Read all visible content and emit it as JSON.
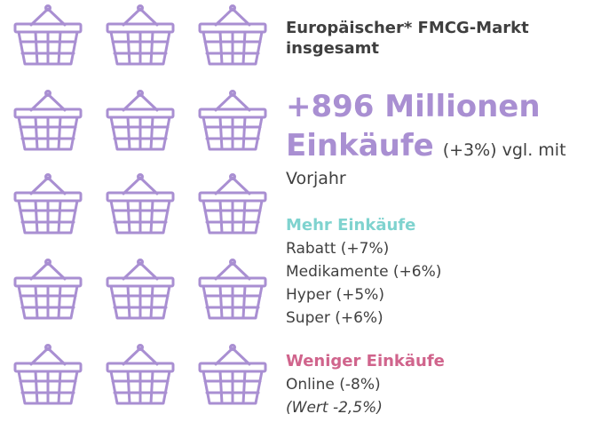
{
  "colors": {
    "basket": "#a98fd2",
    "accent": "#a98fd2",
    "more": "#7fd3cf",
    "less": "#d0648c",
    "text": "#404040"
  },
  "icon": "shopping-basket-icon",
  "basket_count": 15,
  "market": {
    "title": "Europäischer*  FMCG-Markt insgesamt"
  },
  "headline": {
    "line1": "+896 Millionen",
    "line2": "Einkäufe",
    "change": "(+3%) vgl. mit",
    "line3": "Vorjahr"
  },
  "more": {
    "title": "Mehr Einkäufe",
    "items": [
      "Rabatt (+7%)",
      "Medikamente (+6%)",
      "Hyper (+5%)",
      "Super (+6%)"
    ]
  },
  "less": {
    "title": "Weniger Einkäufe",
    "items": [
      "Online (-8%)",
      "(Wert -2,5%)"
    ]
  }
}
